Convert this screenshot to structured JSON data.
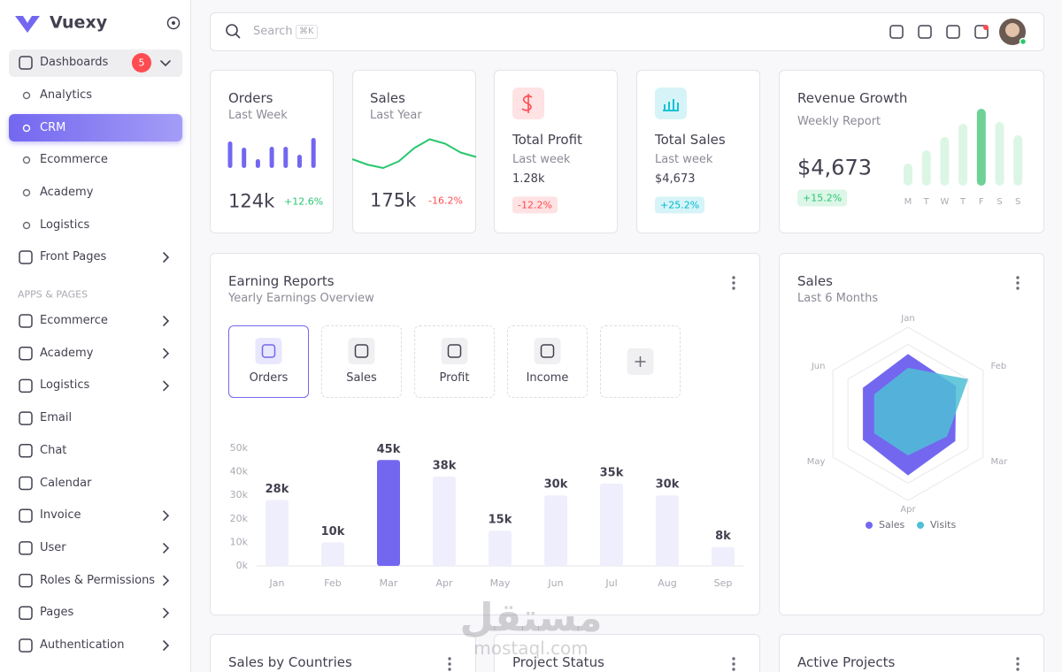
{
  "sidebar": {
    "brand": "Vuexy",
    "menu": [
      {
        "label": "Dashboards",
        "badge": 5
      },
      {
        "label": "Analytics"
      },
      {
        "label": "CRM"
      },
      {
        "label": "Ecommerce"
      },
      {
        "label": "Academy"
      },
      {
        "label": "Logistics"
      },
      {
        "label": "Front Pages"
      }
    ],
    "section": "APPS & PAGES",
    "apps": [
      "Ecommerce",
      "Academy",
      "Logistics",
      "Email",
      "Chat",
      "Calendar",
      "Invoice",
      "User",
      "Roles & Permissions",
      "Pages",
      "Authentication"
    ]
  },
  "header": {
    "search": "Search",
    "shortcut": "⌘K"
  },
  "orders": {
    "title": "Orders",
    "subtitle": "Last Week",
    "value": "124k",
    "change": "+12.6%",
    "chart": {
      "type": "bar",
      "values": [
        30,
        23,
        10,
        24,
        24,
        15,
        34
      ],
      "color": "#7367f0",
      "ylim": [
        0,
        40
      ]
    }
  },
  "sales_card": {
    "title": "Sales",
    "subtitle": "Last Year",
    "value": "175k",
    "change": "-16.2%",
    "chart": {
      "type": "line",
      "values": [
        16,
        11,
        8,
        14,
        26,
        34,
        30,
        22,
        18
      ],
      "color": "#28c76f",
      "ylim": [
        0,
        40
      ]
    }
  },
  "profit": {
    "title": "Total Profit",
    "subtitle": "Last week",
    "value": "1.28k",
    "change": "-12.2%"
  },
  "total_sales": {
    "title": "Total Sales",
    "subtitle": "Last week",
    "value": "$4,673",
    "change": "+25.2%"
  },
  "revenue": {
    "title": "Revenue Growth",
    "subtitle": "Weekly Report",
    "value": "$4,673",
    "change": "+15.2%",
    "chart": {
      "type": "bar",
      "categories": [
        "M",
        "T",
        "W",
        "T",
        "F",
        "S",
        "S"
      ],
      "values": [
        25,
        40,
        55,
        70,
        87,
        72,
        57
      ],
      "colors": [
        "#dcf6e5",
        "#dcf6e5",
        "#dcf6e5",
        "#dcf6e5",
        "#6fd195",
        "#dcf6e5",
        "#dcf6e5"
      ],
      "ylim": [
        0,
        100
      ]
    }
  },
  "earning_reports": {
    "title": "Earning Reports",
    "subtitle": "Yearly Earnings Overview",
    "tabs": [
      "Orders",
      "Sales",
      "Profit",
      "Income"
    ],
    "chart": {
      "type": "bar",
      "categories": [
        "Jan",
        "Feb",
        "Mar",
        "Apr",
        "May",
        "Jun",
        "Jul",
        "Aug",
        "Sep"
      ],
      "values": [
        28,
        10,
        45,
        38,
        15,
        30,
        35,
        30,
        8
      ],
      "value_labels": [
        "28k",
        "10k",
        "45k",
        "38k",
        "15k",
        "30k",
        "35k",
        "30k",
        "8k"
      ],
      "colors": [
        "#efeefc",
        "#efeefc",
        "#7367f0",
        "#efeefc",
        "#efeefc",
        "#efeefc",
        "#efeefc",
        "#efeefc",
        "#efeefc"
      ],
      "ylim": [
        0,
        50
      ],
      "yticks": [
        {
          "value": 0,
          "label": "0k"
        },
        {
          "value": 10,
          "label": "10k"
        },
        {
          "value": 20,
          "label": "20k"
        },
        {
          "value": 30,
          "label": "30k"
        },
        {
          "value": 40,
          "label": "40k"
        },
        {
          "value": 50,
          "label": "50k"
        }
      ],
      "grid": false
    }
  },
  "sales_radar": {
    "title": "Sales",
    "subtitle": "Last 6 Months",
    "chart": {
      "type": "radar",
      "categories": [
        "Jan",
        "Feb",
        "Mar",
        "Apr",
        "May",
        "Jun"
      ],
      "rlim": [
        0,
        100
      ],
      "series": [
        {
          "name": "Sales",
          "color": "#7367f0",
          "values": [
            69,
            64,
            63,
            71,
            60,
            60
          ]
        },
        {
          "name": "Visits",
          "color": "#4fc0d6",
          "values": [
            53,
            80,
            52,
            48,
            45,
            45
          ]
        }
      ]
    }
  },
  "bottom": [
    "Sales by Countries",
    "Project Status",
    "Active Projects"
  ],
  "watermark": {
    "arabic": "مستقل",
    "latin": "mostaql.com"
  }
}
